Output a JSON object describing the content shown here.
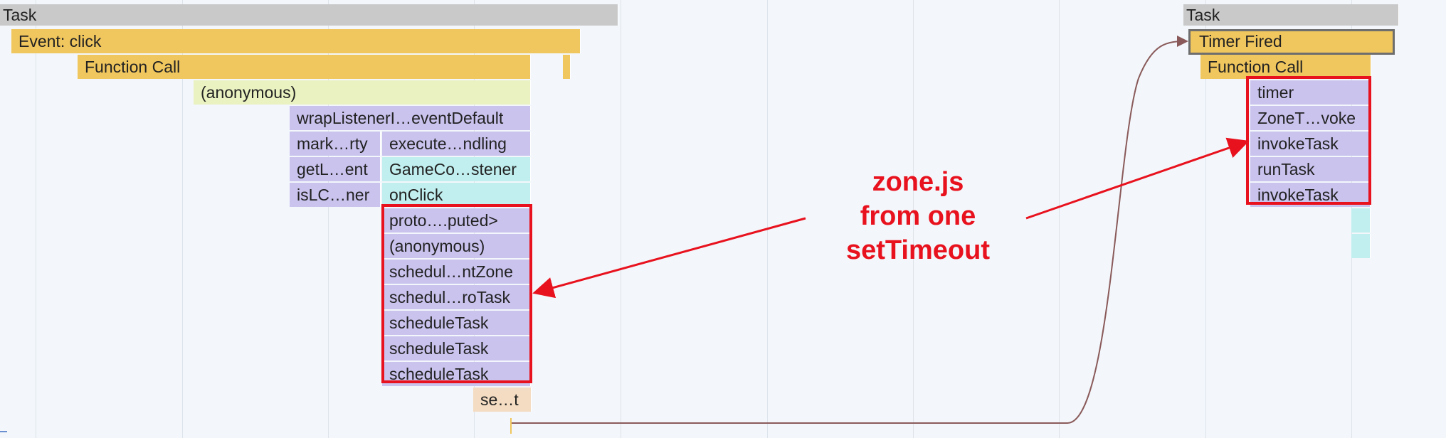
{
  "colors": {
    "task": "#c9c9c9",
    "event": "#f0c65e",
    "anonymous_light": "#e9f2c0",
    "purple": "#c9c3ee",
    "cyan": "#c1efef",
    "peach": "#f3dcc2",
    "annotation": "#e8121e",
    "flow_line": "#8a5a5a"
  },
  "flame_bars": [
    {
      "label": "Task",
      "color": "task"
    },
    {
      "label": "Event: click",
      "color": "event"
    },
    {
      "label": "Function Call",
      "color": "event"
    },
    {
      "label": "",
      "color": "event"
    },
    {
      "label": "(anonymous)",
      "color": "anonymous_light"
    },
    {
      "label": "wrapListenerI…eventDefault",
      "color": "purple"
    },
    {
      "label": "mark…rty",
      "color": "purple"
    },
    {
      "label": "execute…ndling",
      "color": "purple"
    },
    {
      "label": "getL…ent",
      "color": "purple"
    },
    {
      "label": "GameCo…stener",
      "color": "cyan"
    },
    {
      "label": "isLC…ner",
      "color": "purple"
    },
    {
      "label": "onClick",
      "color": "cyan"
    },
    {
      "label": "proto….puted>",
      "color": "purple"
    },
    {
      "label": "(anonymous)",
      "color": "purple"
    },
    {
      "label": "schedul…ntZone",
      "color": "purple"
    },
    {
      "label": "schedul…roTask",
      "color": "purple"
    },
    {
      "label": "scheduleTask",
      "color": "purple"
    },
    {
      "label": "scheduleTask",
      "color": "purple"
    },
    {
      "label": "scheduleTask",
      "color": "purple"
    },
    {
      "label": "se…t",
      "color": "peach"
    },
    {
      "label": "Task",
      "color": "task"
    },
    {
      "label": "Timer Fired",
      "color": "event",
      "selected": true
    },
    {
      "label": "Function Call",
      "color": "event"
    },
    {
      "label": "timer",
      "color": "purple"
    },
    {
      "label": "ZoneT…voke",
      "color": "purple"
    },
    {
      "label": "invokeTask",
      "color": "purple"
    },
    {
      "label": "runTask",
      "color": "purple"
    },
    {
      "label": "invokeTask",
      "color": "purple"
    },
    {
      "label": "",
      "color": "cyan"
    },
    {
      "label": "",
      "color": "cyan"
    }
  ],
  "annotation": {
    "line1": "zone.js",
    "line2": "from one",
    "line3": "setTimeout"
  }
}
